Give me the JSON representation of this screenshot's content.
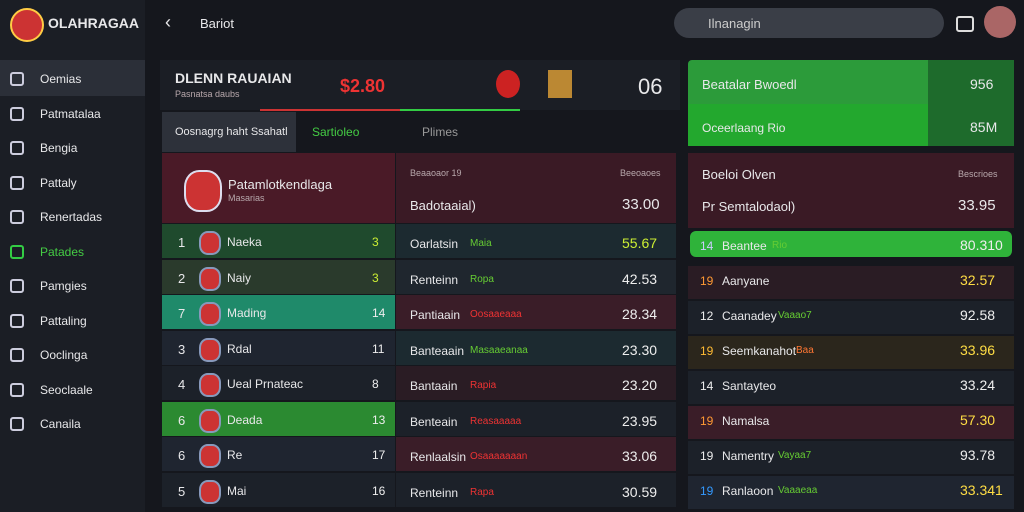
{
  "app": {
    "title": "OLAHRAGAA",
    "back_title": "Bariot",
    "search": "Ilnanagin"
  },
  "sidebar": [
    "Oemias",
    "Patmatalaa",
    "Bengia",
    "Pattaly",
    "Renertadas",
    "Patades",
    "Pamgies",
    "Pattaling",
    "Ooclinga",
    "Seoclaale",
    "Canaila"
  ],
  "match": {
    "team": "DLENN RAUAIAN",
    "subtitle": "Pasnatsa daubs",
    "price": "$2.80",
    "score": "06"
  },
  "tabs": [
    "Oosnagrg haht Ssahatl",
    "Sartioleo",
    "Plimes"
  ],
  "standings": {
    "title": "Patamlotkendlaga",
    "subtitle": "Masarias",
    "rows": [
      [
        "1",
        "Naeka",
        "3"
      ],
      [
        "2",
        "Naiy",
        "3"
      ],
      [
        "7",
        "Mading",
        "14"
      ],
      [
        "3",
        "Rdal",
        "11"
      ],
      [
        "4",
        "Ueal Prnateac",
        "8"
      ],
      [
        "6",
        "Deada",
        "13"
      ],
      [
        "6",
        "Re",
        "17"
      ],
      [
        "5",
        "Mai",
        "16"
      ]
    ]
  },
  "odds": {
    "header": "Beaaoaor 19",
    "header_right": "Beeoaoes",
    "first_name": "Badotaaial)",
    "first_value": "33.00",
    "rows": [
      [
        "Oarlatsin",
        "Maia",
        "55.67"
      ],
      [
        "Renteinn",
        "Ropa",
        "42.53"
      ],
      [
        "Pantiaain",
        "Oosaaeaaa",
        "28.34"
      ],
      [
        "Banteaain",
        "Masaaeanaa",
        "23.30"
      ],
      [
        "Bantaain",
        "Rapia",
        "23.20"
      ],
      [
        "Benteain",
        "Reasaaaaa",
        "23.95"
      ],
      [
        "Renlaalsin",
        "Osaaaaaaan",
        "33.06"
      ],
      [
        "Renteinn",
        "Rapa",
        "30.59"
      ]
    ]
  },
  "promo": {
    "title": "Beatalar Bwoedl",
    "subtitle": "Oceerlaang Rio",
    "value1": "956",
    "value2": "85M"
  },
  "ranking": {
    "header": "Boeloi Olven",
    "header_right": "Bescrioes",
    "first_name": "Pr Semtalodaol)",
    "first_value": "33.95",
    "rows": [
      [
        "14",
        "Beantee",
        "Rio",
        "80.310"
      ],
      [
        "19",
        "Aanyane",
        "",
        "32.57"
      ],
      [
        "12",
        "Caanadey",
        "Vaaao7",
        "92.58"
      ],
      [
        "19",
        "Seemkanahot",
        "Baa",
        "33.96"
      ],
      [
        "14",
        "Santayteo",
        "",
        "33.24"
      ],
      [
        "19",
        "Namalsa",
        "",
        "57.30"
      ],
      [
        "19",
        "Namentry",
        "Vayaa7",
        "93.78"
      ],
      [
        "19",
        "Ranlaoon",
        "Vaaaeaa",
        "33.341"
      ]
    ]
  }
}
